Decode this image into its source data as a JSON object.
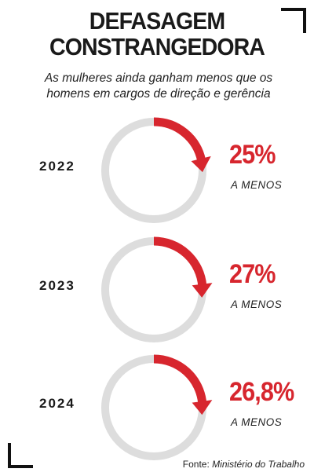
{
  "header": {
    "title_line1": "DEFASAGEM",
    "title_line2": "CONSTRANGEDORA",
    "subtitle_line1": "As mulheres ainda ganham menos que os",
    "subtitle_line2": "homens em cargos de direção e gerência"
  },
  "chart_data": {
    "type": "pie",
    "title": "DEFASAGEM CONSTRANGEDORA",
    "subtitle": "As mulheres ainda ganham menos que os homens em cargos de direção e gerência",
    "categories": [
      "2022",
      "2023",
      "2024"
    ],
    "values": [
      25,
      27,
      26.8
    ],
    "value_labels": [
      "25%",
      "27%",
      "26,8%"
    ],
    "caption": "A MENOS",
    "colors": {
      "highlight": "#d7262e",
      "ring": "#dddddd"
    }
  },
  "footer": {
    "source_label": "Fonte:",
    "source_value": "Ministério do Trabalho"
  }
}
